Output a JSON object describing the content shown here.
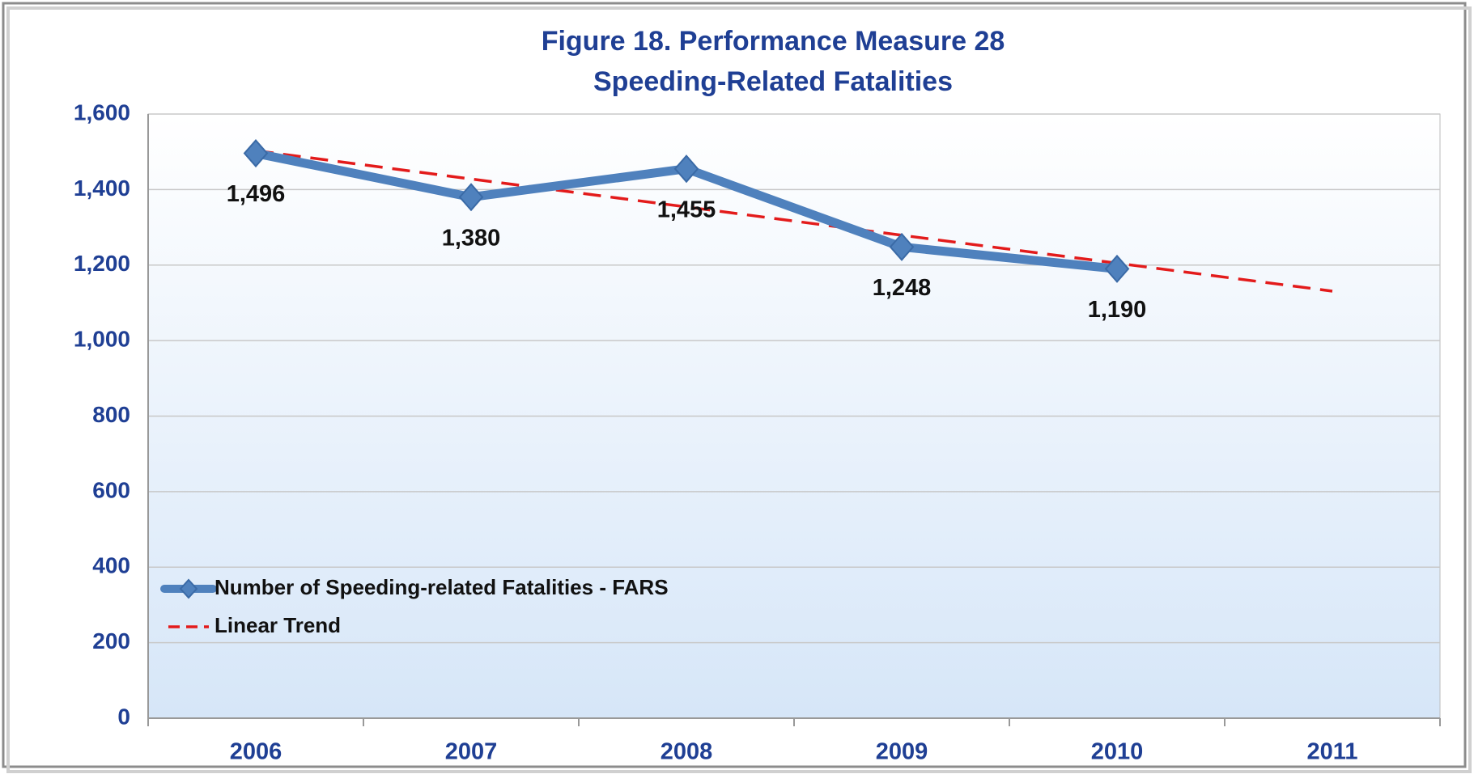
{
  "chart_data": {
    "type": "line",
    "title": [
      "Figure 18. Performance Measure 28",
      "Speeding-Related Fatalities"
    ],
    "categories": [
      "2006",
      "2007",
      "2008",
      "2009",
      "2010",
      "2011"
    ],
    "series": [
      {
        "name": "Number of Speeding-related Fatalities - FARS",
        "color": "#4f81bd",
        "style": "solid",
        "marker": "diamond",
        "values": [
          1496,
          1380,
          1455,
          1248,
          1190,
          null
        ],
        "value_labels": [
          "1,496",
          "1,380",
          "1,455",
          "1,248",
          "1,190",
          null
        ]
      },
      {
        "name": "Linear Trend",
        "color": "#e31b1b",
        "style": "dashed",
        "values": [
          1503,
          1428,
          1354,
          1279,
          1205,
          1131
        ]
      }
    ],
    "ylim": [
      0,
      1600
    ],
    "yticks": [
      0,
      200,
      400,
      600,
      800,
      {
        "value": 1000,
        "label": "1,000"
      },
      {
        "value": 1200,
        "label": "1,200"
      },
      {
        "value": 1400,
        "label": "1,400"
      },
      {
        "value": 1600,
        "label": "1,600"
      }
    ],
    "grid": true,
    "legend": "left"
  }
}
